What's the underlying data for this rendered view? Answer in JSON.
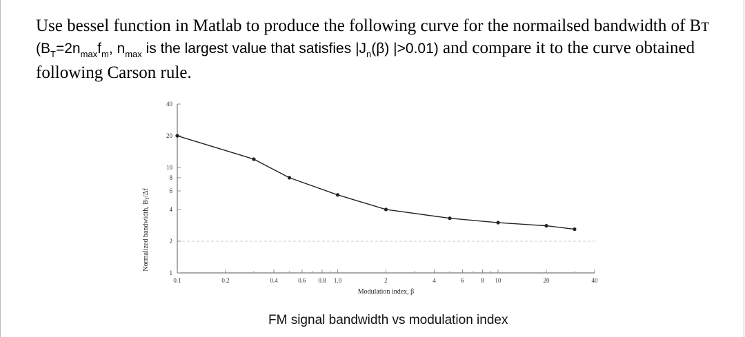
{
  "question": {
    "line1": "Use bessel function in Matlab to produce the following curve for the normailsed bandwidth of B",
    "line1_sub": "T",
    "line2_parts": [
      "(B",
      "T",
      "=2n",
      "max",
      "f",
      "m",
      ", n",
      "max",
      " is  the largest value that satisfies |J",
      "n",
      "(β) |>0.01)"
    ],
    "line2_tail": " and compare it to the curve obtained",
    "line3": "following Carson rule."
  },
  "chart_data": {
    "type": "line",
    "xlabel": "Modulation index, β",
    "ylabel": "Normalized bandwidth, B",
    "ylabel_sub": "T",
    "ylabel_tail": "/Δf",
    "x_scale": "log",
    "y_scale": "log",
    "xlim": [
      0.1,
      40
    ],
    "ylim": [
      1,
      40
    ],
    "x_ticks": [
      {
        "v": 0.1,
        "label": "0.1"
      },
      {
        "v": 0.2,
        "label": "0.2"
      },
      {
        "v": 0.4,
        "label": "0.4"
      },
      {
        "v": 0.6,
        "label": "0.6"
      },
      {
        "v": 0.8,
        "label": "0.8"
      },
      {
        "v": 1.0,
        "label": "1.0"
      },
      {
        "v": 2,
        "label": "2"
      },
      {
        "v": 4,
        "label": "4"
      },
      {
        "v": 6,
        "label": "6"
      },
      {
        "v": 8,
        "label": "8"
      },
      {
        "v": 10,
        "label": "10"
      },
      {
        "v": 20,
        "label": "20"
      },
      {
        "v": 40,
        "label": "40"
      }
    ],
    "y_ticks": [
      {
        "v": 1,
        "label": "1"
      },
      {
        "v": 2,
        "label": "2"
      },
      {
        "v": 4,
        "label": "4"
      },
      {
        "v": 6,
        "label": "6"
      },
      {
        "v": 8,
        "label": "8"
      },
      {
        "v": 10,
        "label": "10"
      },
      {
        "v": 20,
        "label": "20"
      },
      {
        "v": 40,
        "label": "40"
      }
    ],
    "series": [
      {
        "x": [
          0.1,
          0.3,
          0.5,
          1.0,
          2.0,
          5.0,
          10.0,
          20.0,
          30.0
        ],
        "y": [
          20,
          12,
          8,
          5.5,
          4.0,
          3.3,
          3.0,
          2.8,
          2.6
        ]
      }
    ],
    "grid": false
  },
  "caption": "FM signal bandwidth vs modulation index",
  "colors": {
    "curve": "#222222",
    "axis": "#555555",
    "grid_dash": "#cccccc"
  }
}
